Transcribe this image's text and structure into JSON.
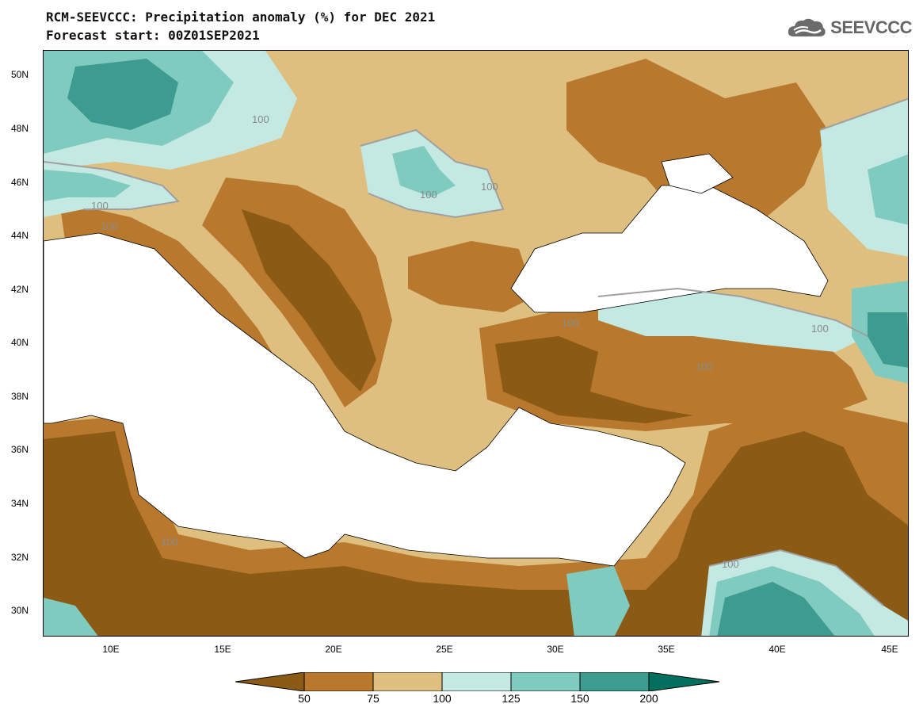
{
  "title": {
    "line1": "RCM-SEEVCCC: Precipitation anomaly (%) for DEC 2021",
    "line2": "Forecast start: 00Z01SEP2021"
  },
  "logo": {
    "text": "SEEVCCC",
    "icon": "cloud-icon"
  },
  "latitude_labels": [
    "50N",
    "48N",
    "46N",
    "44N",
    "42N",
    "40N",
    "38N",
    "36N",
    "34N",
    "32N",
    "30N"
  ],
  "longitude_labels": [
    "10E",
    "15E",
    "20E",
    "25E",
    "30E",
    "35E",
    "40E",
    "45E"
  ],
  "contour_labels": [
    "100",
    "100",
    "100",
    "100",
    "100",
    "100",
    "100",
    "100",
    "100",
    "100"
  ],
  "legend": {
    "ticks": [
      "50",
      "75",
      "100",
      "125",
      "150",
      "200"
    ],
    "colors": [
      "#8b5a14",
      "#b8792e",
      "#dfbf7f",
      "#c3e9e2",
      "#80cbbf",
      "#3d9b8f",
      "#03705f"
    ]
  },
  "colors": {
    "land_dry_strong": "#8b5a14",
    "land_dry": "#b8792e",
    "land_normal_low": "#dfbf7f",
    "land_normal_high": "#c3e9e2",
    "land_wet": "#80cbbf",
    "land_wet_strong": "#3d9b8f",
    "sea": "#ffffff"
  }
}
